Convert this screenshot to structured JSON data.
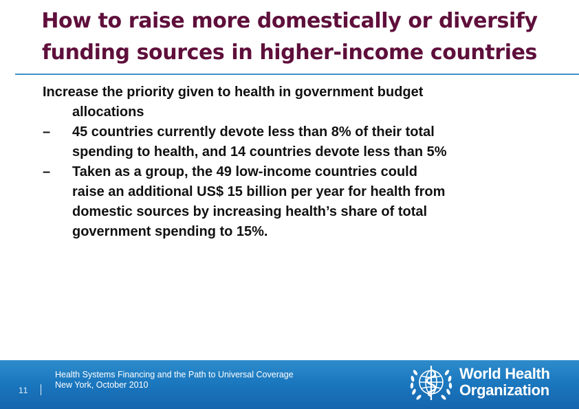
{
  "slide": {
    "title_line1": "How to raise more domestically or diversify",
    "title_line2": "funding sources in higher-income countries",
    "main_point_line1": "Increase the priority given to health in government budget",
    "main_point_line2": "allocations",
    "bullets": [
      {
        "dash": "–",
        "lines": [
          "45 countries currently devote less than 8% of their total",
          "spending to health, and 14 countries devote less than 5%"
        ]
      },
      {
        "dash": "–",
        "lines": [
          "Taken as a group, the 49 low-income countries could",
          "raise an additional US$ 15 billion per year for health from",
          "domestic sources by increasing health’s share of total",
          "government spending to 15%."
        ]
      }
    ]
  },
  "footer": {
    "page_number": "11",
    "line1": "Health Systems Financing and the Path to Universal Coverage",
    "line2": "New York, October 2010",
    "org_line1": "World Health",
    "org_line2": "Organization",
    "emblem_icon": "who-emblem-icon",
    "background_color": "#1b78bf"
  },
  "colors": {
    "title": "#5f0f3b",
    "rule": "#3d8fc8",
    "body_text": "#111111"
  }
}
